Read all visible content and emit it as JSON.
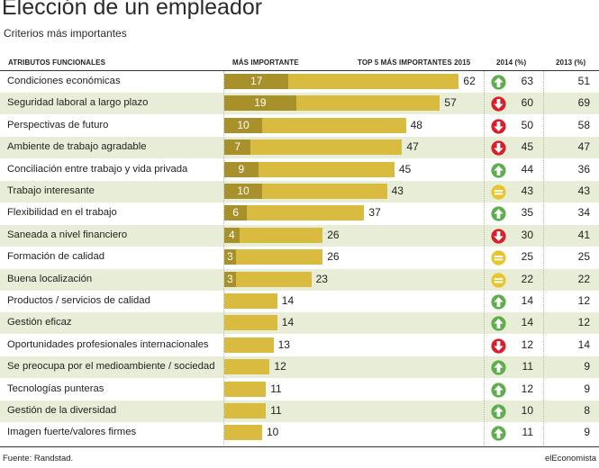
{
  "header": {
    "title": "Elección de un empleador",
    "subtitle": "Criterios más importantes"
  },
  "columns": {
    "attributes": "ATRIBUTOS FUNCIONALES",
    "most_important": "MÁS IMPORTANTE",
    "top5": "TOP 5 MÁS IMPORTANTES 2015",
    "y2014": "2014 (%)",
    "y2013": "2013 (%)"
  },
  "footer": {
    "source": "Fuente: Randstad.",
    "brand": "elEconomista"
  },
  "colors": {
    "top5_bar": "#d9bb40",
    "most_bar": "#a8912a",
    "up": "#5fae4e",
    "down": "#d8202a",
    "equal": "#e7c52b",
    "row_alt": "#e8edd7"
  },
  "chart_data": {
    "type": "bar",
    "title": "Elección de un empleador",
    "subtitle": "Criterios más importantes",
    "xlim": [
      0,
      70
    ],
    "categories": [
      "Condiciones económicas",
      "Seguridad laboral a largo plazo",
      "Perspectivas de futuro",
      "Ambiente de trabajo agradable",
      "Conciliación entre trabajo y vida privada",
      "Trabajo interesante",
      "Flexibilidad en el trabajo",
      "Saneada a nivel financiero",
      "Formación de calidad",
      "Buena localización",
      "Productos / servicios de calidad",
      "Gestión eficaz",
      "Oportunidades profesionales internacionales",
      "Se preocupa por el medioambiente / sociedad",
      "Tecnologías punteras",
      "Gestión de la diversidad",
      "Imagen fuerte/valores firmes"
    ],
    "series": [
      {
        "name": "MÁS IMPORTANTE",
        "values": [
          17,
          19,
          10,
          7,
          9,
          10,
          6,
          4,
          3,
          3,
          null,
          null,
          null,
          null,
          null,
          null,
          null
        ]
      },
      {
        "name": "TOP 5 MÁS IMPORTANTES 2015",
        "values": [
          62,
          57,
          48,
          47,
          45,
          43,
          37,
          26,
          26,
          23,
          14,
          14,
          13,
          12,
          11,
          11,
          10
        ]
      },
      {
        "name": "2014 (%)",
        "values": [
          63,
          60,
          50,
          45,
          44,
          43,
          35,
          30,
          25,
          22,
          14,
          14,
          12,
          11,
          12,
          10,
          11
        ]
      },
      {
        "name": "2013 (%)",
        "values": [
          51,
          69,
          58,
          47,
          36,
          43,
          34,
          41,
          25,
          22,
          12,
          12,
          14,
          9,
          9,
          8,
          9
        ]
      }
    ],
    "trend_2014": [
      "up",
      "down",
      "down",
      "down",
      "up",
      "equal",
      "up",
      "down",
      "equal",
      "equal",
      "up",
      "up",
      "down",
      "up",
      "up",
      "up",
      "up"
    ]
  }
}
